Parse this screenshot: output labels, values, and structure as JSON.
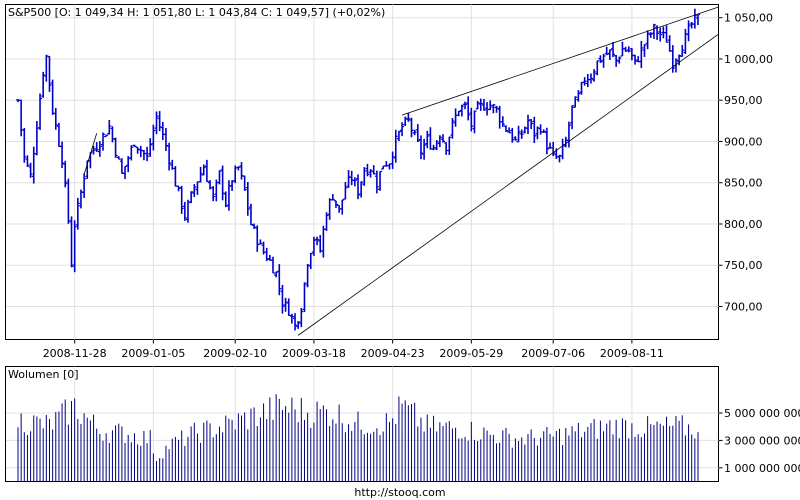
{
  "chart_data": [
    {
      "type": "ohlc",
      "title": "S&P500 [O: 1 049,34  H: 1 051,80  L: 1 043,84  C: 1 049,57]  (+0,02%)",
      "ylim": [
        660,
        1066
      ],
      "y_ticks": [
        {
          "value": 700,
          "label": "700,00"
        },
        {
          "value": 750,
          "label": "750,00"
        },
        {
          "value": 800,
          "label": "800,00"
        },
        {
          "value": 850,
          "label": "850,00"
        },
        {
          "value": 900,
          "label": "900,00"
        },
        {
          "value": 950,
          "label": "950,00"
        },
        {
          "value": 1000,
          "label": "1 000,00"
        },
        {
          "value": 1050,
          "label": "1 050,00"
        }
      ],
      "x_ticks": [
        {
          "index": 18,
          "label": "2008-11-28"
        },
        {
          "index": 43,
          "label": "2009-01-05"
        },
        {
          "index": 69,
          "label": "2009-02-10"
        },
        {
          "index": 94,
          "label": "2009-03-18"
        },
        {
          "index": 119,
          "label": "2009-04-23"
        },
        {
          "index": 144,
          "label": "2009-05-29"
        },
        {
          "index": 170,
          "label": "2009-07-06"
        },
        {
          "index": 195,
          "label": "2009-08-11"
        }
      ],
      "grid": true,
      "series_color": "#0000cc",
      "close_keypoints": [
        {
          "i": 0,
          "c": 950
        },
        {
          "i": 2,
          "c": 880
        },
        {
          "i": 4,
          "c": 858
        },
        {
          "i": 8,
          "c": 985
        },
        {
          "i": 9,
          "c": 1003
        },
        {
          "i": 11,
          "c": 938
        },
        {
          "i": 14,
          "c": 880
        },
        {
          "i": 16,
          "c": 805
        },
        {
          "i": 17,
          "c": 752
        },
        {
          "i": 18,
          "c": 800
        },
        {
          "i": 20,
          "c": 838
        },
        {
          "i": 22,
          "c": 880
        },
        {
          "i": 25,
          "c": 895
        },
        {
          "i": 29,
          "c": 918
        },
        {
          "i": 33,
          "c": 860
        },
        {
          "i": 37,
          "c": 900
        },
        {
          "i": 41,
          "c": 880
        },
        {
          "i": 44,
          "c": 930
        },
        {
          "i": 47,
          "c": 895
        },
        {
          "i": 50,
          "c": 850
        },
        {
          "i": 53,
          "c": 810
        },
        {
          "i": 56,
          "c": 845
        },
        {
          "i": 59,
          "c": 870
        },
        {
          "i": 62,
          "c": 830
        },
        {
          "i": 64,
          "c": 860
        },
        {
          "i": 66,
          "c": 825
        },
        {
          "i": 68,
          "c": 855
        },
        {
          "i": 70,
          "c": 868
        },
        {
          "i": 72,
          "c": 840
        },
        {
          "i": 74,
          "c": 800
        },
        {
          "i": 77,
          "c": 772
        },
        {
          "i": 80,
          "c": 755
        },
        {
          "i": 82,
          "c": 740
        },
        {
          "i": 84,
          "c": 705
        },
        {
          "i": 86,
          "c": 696
        },
        {
          "i": 88,
          "c": 676
        },
        {
          "i": 90,
          "c": 700
        },
        {
          "i": 92,
          "c": 756
        },
        {
          "i": 94,
          "c": 783
        },
        {
          "i": 96,
          "c": 768
        },
        {
          "i": 98,
          "c": 816
        },
        {
          "i": 100,
          "c": 835
        },
        {
          "i": 102,
          "c": 815
        },
        {
          "i": 104,
          "c": 845
        },
        {
          "i": 106,
          "c": 856
        },
        {
          "i": 108,
          "c": 840
        },
        {
          "i": 110,
          "c": 866
        },
        {
          "i": 112,
          "c": 868
        },
        {
          "i": 114,
          "c": 850
        },
        {
          "i": 116,
          "c": 873
        },
        {
          "i": 118,
          "c": 876
        },
        {
          "i": 120,
          "c": 900
        },
        {
          "i": 122,
          "c": 918
        },
        {
          "i": 124,
          "c": 925
        },
        {
          "i": 126,
          "c": 905
        },
        {
          "i": 128,
          "c": 888
        },
        {
          "i": 130,
          "c": 902
        },
        {
          "i": 132,
          "c": 893
        },
        {
          "i": 134,
          "c": 910
        },
        {
          "i": 136,
          "c": 895
        },
        {
          "i": 138,
          "c": 920
        },
        {
          "i": 140,
          "c": 940
        },
        {
          "i": 142,
          "c": 942
        },
        {
          "i": 144,
          "c": 920
        },
        {
          "i": 146,
          "c": 940
        },
        {
          "i": 148,
          "c": 944
        },
        {
          "i": 150,
          "c": 944
        },
        {
          "i": 152,
          "c": 938
        },
        {
          "i": 154,
          "c": 920
        },
        {
          "i": 156,
          "c": 912
        },
        {
          "i": 158,
          "c": 900
        },
        {
          "i": 160,
          "c": 910
        },
        {
          "i": 162,
          "c": 925
        },
        {
          "i": 164,
          "c": 910
        },
        {
          "i": 166,
          "c": 918
        },
        {
          "i": 168,
          "c": 896
        },
        {
          "i": 170,
          "c": 881
        },
        {
          "i": 172,
          "c": 880
        },
        {
          "i": 174,
          "c": 900
        },
        {
          "i": 176,
          "c": 940
        },
        {
          "i": 178,
          "c": 954
        },
        {
          "i": 180,
          "c": 976
        },
        {
          "i": 182,
          "c": 980
        },
        {
          "i": 184,
          "c": 996
        },
        {
          "i": 186,
          "c": 1004
        },
        {
          "i": 188,
          "c": 1008
        },
        {
          "i": 190,
          "c": 998
        },
        {
          "i": 192,
          "c": 1012
        },
        {
          "i": 194,
          "c": 1010
        },
        {
          "i": 196,
          "c": 994
        },
        {
          "i": 198,
          "c": 1010
        },
        {
          "i": 200,
          "c": 1026
        },
        {
          "i": 202,
          "c": 1036
        },
        {
          "i": 204,
          "c": 1030
        },
        {
          "i": 206,
          "c": 1024
        },
        {
          "i": 208,
          "c": 996
        },
        {
          "i": 210,
          "c": 1010
        },
        {
          "i": 212,
          "c": 1025
        },
        {
          "i": 214,
          "c": 1042
        },
        {
          "i": 216,
          "c": 1049
        }
      ],
      "trendlines": [
        {
          "from": {
            "i": 89,
            "v": 665
          },
          "to": {
            "i": 230,
            "v": 1030
          }
        },
        {
          "from": {
            "i": 122,
            "v": 932
          },
          "to": {
            "i": 230,
            "v": 1063
          }
        },
        {
          "from": {
            "i": 21,
            "v": 860
          },
          "to": {
            "i": 25,
            "v": 910
          }
        }
      ]
    },
    {
      "type": "bar",
      "title": "Wolumen [0]",
      "ylim": [
        0,
        8400000000
      ],
      "y_ticks": [
        {
          "value": 1000000000,
          "label": "1 000 000 000"
        },
        {
          "value": 3000000000,
          "label": "3 000 000 000"
        },
        {
          "value": 5000000000,
          "label": "5 000 000 000"
        }
      ],
      "series_color": "#00007f",
      "volume_keypoints": [
        {
          "i": 0,
          "v": 4600000000
        },
        {
          "i": 10,
          "v": 4200000000
        },
        {
          "i": 18,
          "v": 5600000000
        },
        {
          "i": 26,
          "v": 3800000000
        },
        {
          "i": 34,
          "v": 3600000000
        },
        {
          "i": 42,
          "v": 3200000000
        },
        {
          "i": 44,
          "v": 1800000000
        },
        {
          "i": 48,
          "v": 2700000000
        },
        {
          "i": 56,
          "v": 3600000000
        },
        {
          "i": 66,
          "v": 4200000000
        },
        {
          "i": 76,
          "v": 5000000000
        },
        {
          "i": 84,
          "v": 5600000000
        },
        {
          "i": 92,
          "v": 5200000000
        },
        {
          "i": 100,
          "v": 5200000000
        },
        {
          "i": 108,
          "v": 4300000000
        },
        {
          "i": 118,
          "v": 4400000000
        },
        {
          "i": 122,
          "v": 5600000000
        },
        {
          "i": 130,
          "v": 4100000000
        },
        {
          "i": 140,
          "v": 4000000000
        },
        {
          "i": 150,
          "v": 3500000000
        },
        {
          "i": 160,
          "v": 3200000000
        },
        {
          "i": 170,
          "v": 3400000000
        },
        {
          "i": 180,
          "v": 3800000000
        },
        {
          "i": 190,
          "v": 4200000000
        },
        {
          "i": 200,
          "v": 4000000000
        },
        {
          "i": 210,
          "v": 4100000000
        },
        {
          "i": 216,
          "v": 3900000000
        }
      ]
    }
  ],
  "footer": "http://stooq.com"
}
